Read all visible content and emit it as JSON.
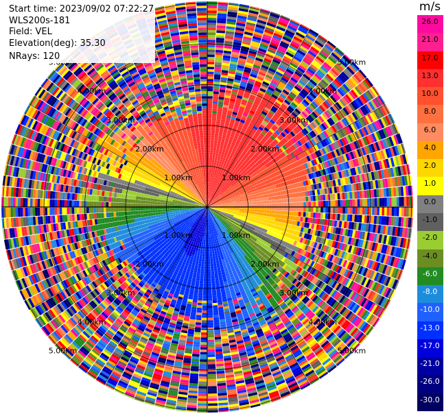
{
  "header": {
    "start_time": "Start time: 2023/09/02 07:22:27",
    "instrument": "WLS200s-181",
    "field": "Field: VEL",
    "elevation": "Elevation(deg): 35.30",
    "nrays": "NRays: 120"
  },
  "chart_data": {
    "type": "heatmap",
    "projection": "polar (PPI)",
    "range_rings_km": [
      1,
      2,
      3,
      4,
      5
    ],
    "range_ring_labels": [
      "1.00km",
      "2.00km",
      "3.00km",
      "4.00km",
      "5.00km"
    ],
    "n_rays": 120,
    "colorbar": {
      "unit": "m/s",
      "ticks": [
        "26.0",
        "21.0",
        "17.0",
        "13.0",
        "10.0",
        "8.0",
        "6.0",
        "4.0",
        "2.0",
        "1.0",
        "0.0",
        "-1.0",
        "-2.0",
        "-4.0",
        "-6.0",
        "-8.0",
        "-10.0",
        "-13.0",
        "-17.0",
        "-21.0",
        "-26.0",
        "-30.0"
      ],
      "colors": [
        "#ff0aa0",
        "#ff2090",
        "#ff0000",
        "#ff3030",
        "#ff5030",
        "#ff7040",
        "#ff8c60",
        "#ffa500",
        "#ffd700",
        "#ffff00",
        "#808080",
        "#606060",
        "#9acd32",
        "#6b8e23",
        "#228b22",
        "#1e8cdc",
        "#2060ff",
        "#0030ff",
        "#0000dd",
        "#0000a0",
        "#000080",
        "#000060"
      ]
    }
  }
}
